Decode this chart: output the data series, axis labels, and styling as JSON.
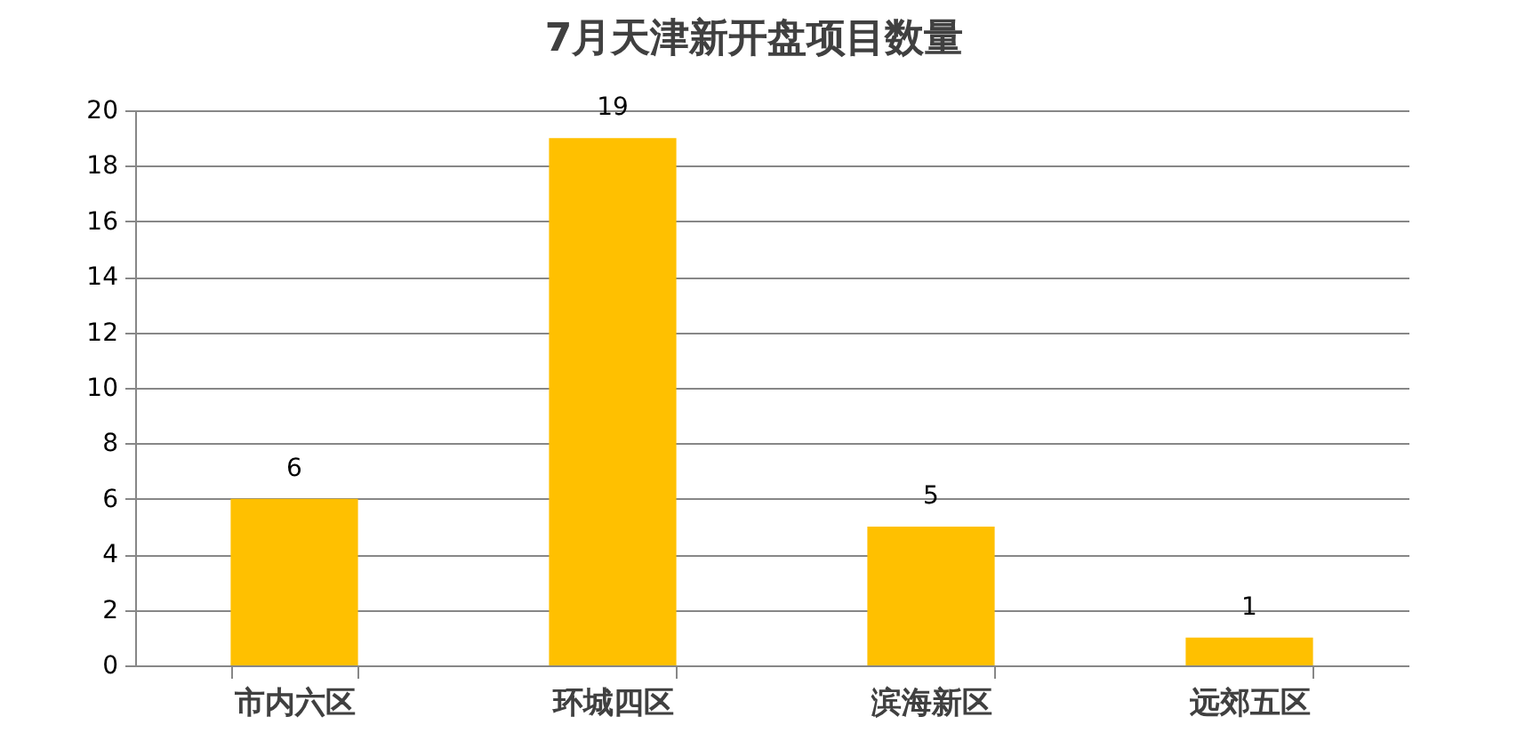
{
  "chart_data": {
    "type": "bar",
    "title": "7月天津新开盘项目数量",
    "categories": [
      "市内六区",
      "环城四区",
      "滨海新区",
      "远郊五区"
    ],
    "values": [
      6,
      19,
      5,
      1
    ],
    "color": "#ffc000",
    "ylim": [
      0,
      20
    ],
    "yticks": [
      0,
      2,
      4,
      6,
      8,
      10,
      12,
      14,
      16,
      18,
      20
    ],
    "grid": "y",
    "data_labels": true
  }
}
